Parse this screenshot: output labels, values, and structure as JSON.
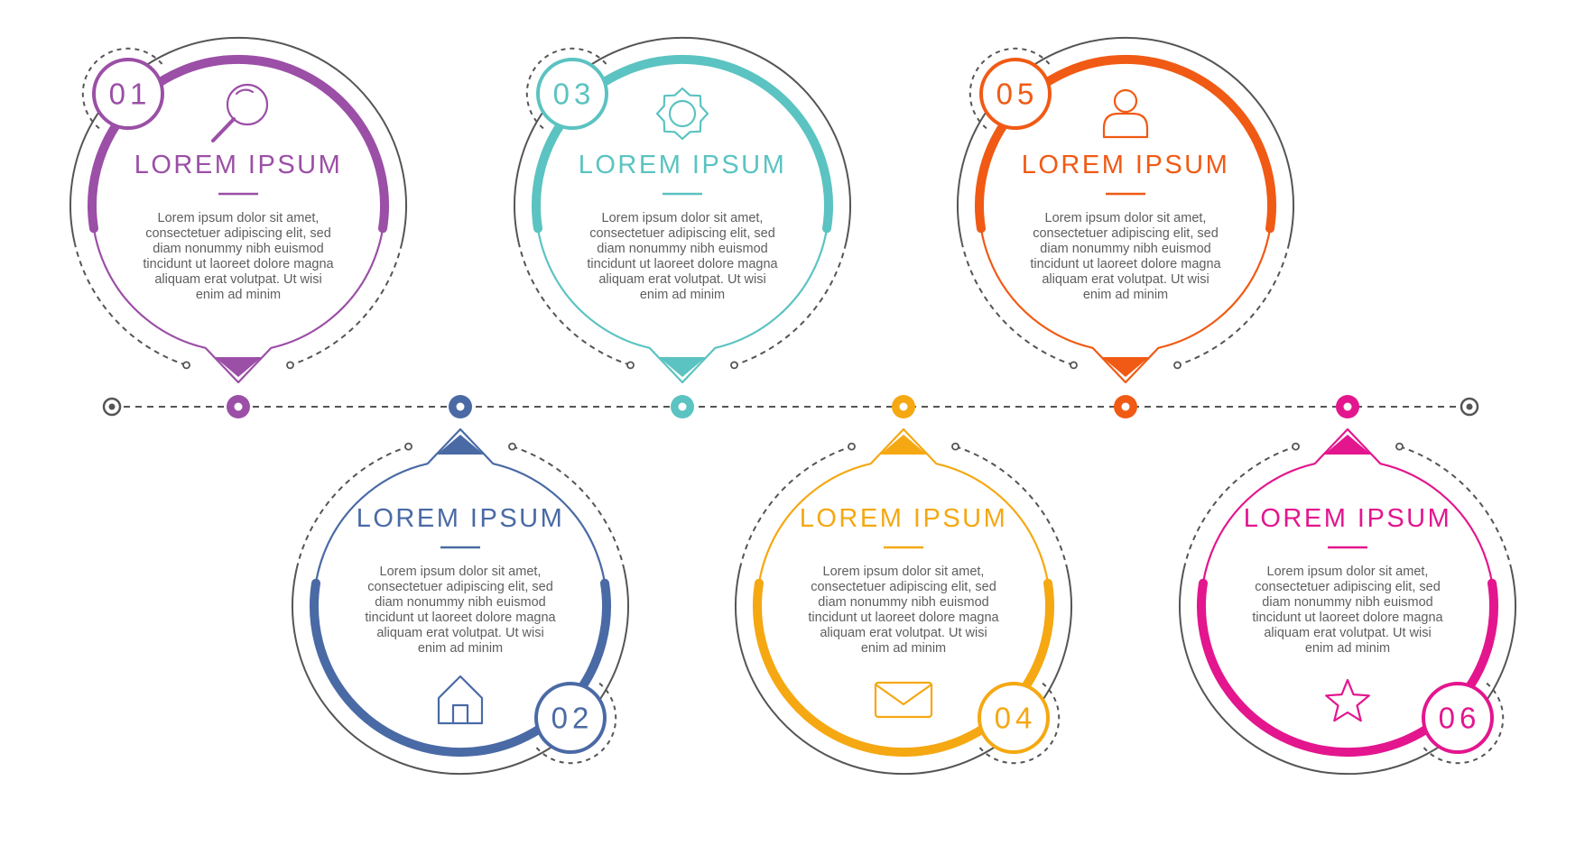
{
  "timeline": {
    "line_color": "#555555",
    "steps": [
      {
        "number": "01",
        "title": "LOREM IPSUM",
        "text": [
          "Lorem ipsum dolor sit amet,",
          "consectetuer adipiscing elit, sed",
          "diam nonummy nibh euismod",
          "tincidunt ut laoreet dolore magna",
          "aliquam erat volutpat. Ut wisi",
          "enim ad minim"
        ],
        "color": "#9b4fa6",
        "icon": "magnifier-icon",
        "position": "top"
      },
      {
        "number": "02",
        "title": "LOREM IPSUM",
        "text": [
          "Lorem ipsum dolor sit amet,",
          "consectetuer adipiscing elit, sed",
          "diam nonummy nibh euismod",
          "tincidunt ut laoreet dolore magna",
          "aliquam erat volutpat. Ut wisi",
          "enim ad minim"
        ],
        "color": "#4a6aa5",
        "icon": "home-icon",
        "position": "bottom"
      },
      {
        "number": "03",
        "title": "LOREM IPSUM",
        "text": [
          "Lorem ipsum dolor sit amet,",
          "consectetuer adipiscing elit, sed",
          "diam nonummy nibh euismod",
          "tincidunt ut laoreet dolore magna",
          "aliquam erat volutpat. Ut wisi",
          "enim ad minim"
        ],
        "color": "#5bc3c1",
        "icon": "gear-icon",
        "position": "top"
      },
      {
        "number": "04",
        "title": "LOREM IPSUM",
        "text": [
          "Lorem ipsum dolor sit amet,",
          "consectetuer adipiscing elit, sed",
          "diam nonummy nibh euismod",
          "tincidunt ut laoreet dolore magna",
          "aliquam erat volutpat. Ut wisi",
          "enim ad minim"
        ],
        "color": "#f5a812",
        "icon": "envelope-icon",
        "position": "bottom"
      },
      {
        "number": "05",
        "title": "LOREM IPSUM",
        "text": [
          "Lorem ipsum dolor sit amet,",
          "consectetuer adipiscing elit, sed",
          "diam nonummy nibh euismod",
          "tincidunt ut laoreet dolore magna",
          "aliquam erat volutpat. Ut wisi",
          "enim ad minim"
        ],
        "color": "#f05a14",
        "icon": "user-icon",
        "position": "top"
      },
      {
        "number": "06",
        "title": "LOREM IPSUM",
        "text": [
          "Lorem ipsum dolor sit amet,",
          "consectetuer adipiscing elit, sed",
          "diam nonummy nibh euismod",
          "tincidunt ut laoreet dolore magna",
          "aliquam erat volutpat. Ut wisi",
          "enim ad minim"
        ],
        "color": "#e3168e",
        "icon": "star-icon",
        "position": "bottom"
      }
    ]
  }
}
